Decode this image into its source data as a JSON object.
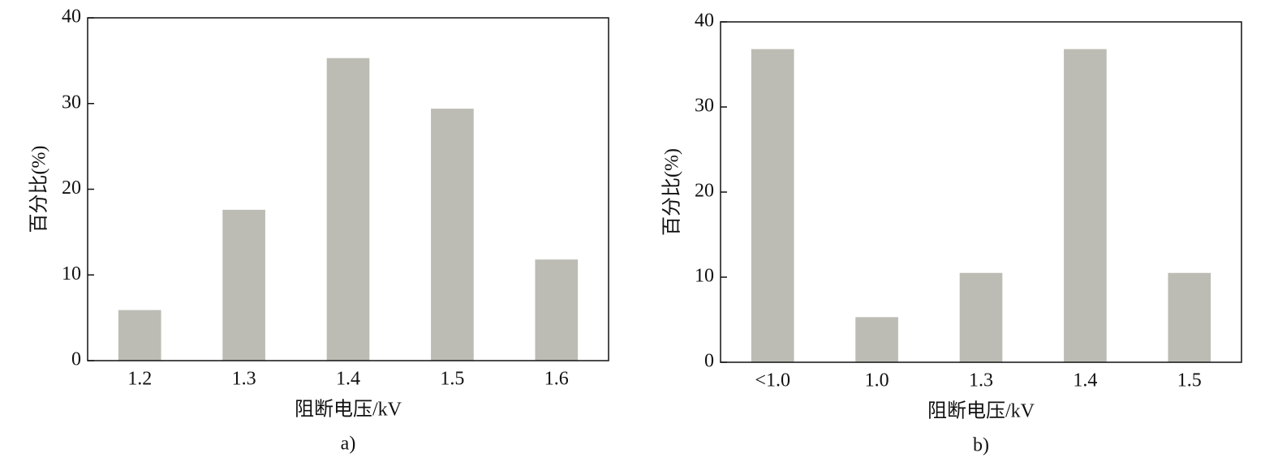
{
  "chart_data": [
    {
      "type": "bar",
      "caption": "a)",
      "x_label": "阻断电压/kV",
      "y_label": "百分比(%)",
      "categories": [
        "1.2",
        "1.3",
        "1.4",
        "1.5",
        "1.6"
      ],
      "values": [
        5.9,
        17.6,
        35.3,
        29.4,
        11.8
      ],
      "color": "#bcbcb4",
      "ylim": [
        0,
        40
      ],
      "yticks": [
        0,
        10,
        20,
        30,
        40
      ]
    },
    {
      "type": "bar",
      "caption": "b)",
      "x_label": "阻断电压/kV",
      "y_label": "百分比(%)",
      "categories": [
        "<1.0",
        "1.0",
        "1.3",
        "1.4",
        "1.5"
      ],
      "values": [
        36.8,
        5.3,
        10.5,
        36.8,
        10.5
      ],
      "color": "#bcbcb4",
      "ylim": [
        0,
        40
      ],
      "yticks": [
        0,
        10,
        20,
        30,
        40
      ]
    }
  ]
}
